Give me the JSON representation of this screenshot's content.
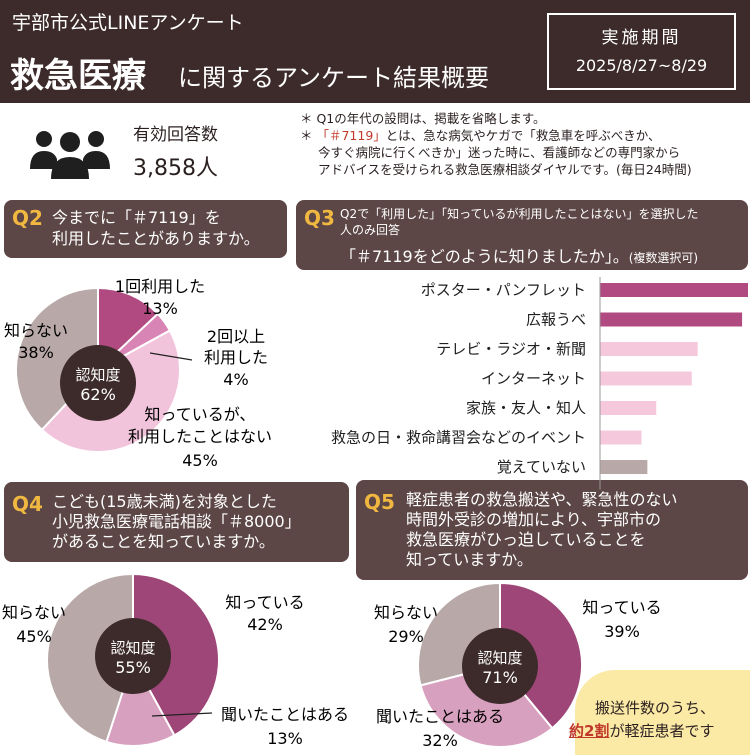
{
  "header": {
    "subtitle": "宇部市公式LINEアンケート",
    "title_big": "救急医療",
    "title_rest": "に関するアンケート結果概要",
    "period_label": "実施期間",
    "period_value": "2025/8/27~8/29"
  },
  "respondents": {
    "label": "有効回答数",
    "value": "3,858人",
    "icon": "people-group-icon"
  },
  "notes": {
    "line1": "＊ Q1の年代の設問は、掲載を省略します。",
    "line2_star": "＊ ",
    "line2_red": "「＃7119」",
    "line2_rest": "とは、急な病気やケガで「救急車を呼ぶべきか、",
    "line3": "今すぐ病院に行くべきか」迷った時に、看護師などの専門家から",
    "line4": "アドバイスを受けられる救急医療相談ダイヤルです。(毎日24時間)"
  },
  "q2": {
    "num": "Q2",
    "line1": "今までに「＃7119」を",
    "line2": "利用したことがありますか。",
    "center_title": "認知度",
    "center_value": "62%",
    "labels": [
      {
        "name": "1回利用した",
        "pct": "13%"
      },
      {
        "name_l1": "2回以上",
        "name_l2": "利用した",
        "pct": "4%"
      },
      {
        "name_l1": "知っているが、",
        "name_l2": "利用したことはない",
        "pct": "45%"
      },
      {
        "name": "知らない",
        "pct": "38%"
      }
    ]
  },
  "q3": {
    "num": "Q3",
    "line1": "Q2で「利用した」「知っているが利用したことはない」を選択した",
    "line2": "人のみ回答",
    "line3": "「＃7119をどのように知りましたか」。",
    "line3_small": "(複数選択可)"
  },
  "q4": {
    "num": "Q4",
    "line1": "こども(15歳未満)を対象とした",
    "line2": "小児救急医療電話相談「＃8000」",
    "line3": "があることを知っていますか。",
    "center_title": "認知度",
    "center_value": "55%",
    "labels": [
      {
        "name": "知っている",
        "pct": "42%"
      },
      {
        "name": "聞いたことはある",
        "pct": "13%"
      },
      {
        "name": "知らない",
        "pct": "45%"
      }
    ]
  },
  "q5": {
    "num": "Q5",
    "line1": "軽症患者の救急搬送や、緊急性のない",
    "line2": "時間外受診の増加により、宇部市の",
    "line3": "救急医療がひっ迫していることを",
    "line4": "知っていますか。",
    "center_title": "認知度",
    "center_value": "71%",
    "labels": [
      {
        "name": "知っている",
        "pct": "39%"
      },
      {
        "name": "聞いたことはある",
        "pct": "32%"
      },
      {
        "name": "知らない",
        "pct": "29%"
      }
    ]
  },
  "callout": {
    "line1": "搬送件数のうち、",
    "line2_red": "約2割",
    "line2_rest": "が軽症患者です"
  },
  "chart_data": [
    {
      "type": "pie",
      "id": "q2",
      "categories": [
        "1回利用した",
        "2回以上利用した",
        "知っているが、利用したことはない",
        "知らない"
      ],
      "values": [
        13,
        4,
        45,
        38
      ],
      "colors": [
        "#b04a80",
        "#d884b4",
        "#f2c4dc",
        "#b8a8a8"
      ]
    },
    {
      "type": "bar",
      "id": "q3",
      "orientation": "horizontal",
      "categories": [
        "ポスター・パンフレット",
        "広報うべ",
        "テレビ・ラジオ・新聞",
        "インターネット",
        "家族・友人・知人",
        "救急の日・救命講習会などのイベント",
        "覚えていない"
      ],
      "values": [
        100,
        96,
        66,
        62,
        38,
        28,
        32
      ],
      "colors": [
        "#b04a80",
        "#b04a80",
        "#f5c8dc",
        "#f5c8dc",
        "#f5c8dc",
        "#f5c8dc",
        "#b8a8a8"
      ]
    },
    {
      "type": "pie",
      "id": "q4",
      "categories": [
        "知っている",
        "聞いたことはある",
        "知らない"
      ],
      "values": [
        42,
        13,
        45
      ],
      "colors": [
        "#9e4677",
        "#d8a0bf",
        "#b8a8a8"
      ]
    },
    {
      "type": "pie",
      "id": "q5",
      "categories": [
        "知っている",
        "聞いたことはある",
        "知らない"
      ],
      "values": [
        39,
        32,
        29
      ],
      "colors": [
        "#9e4677",
        "#d8a0bf",
        "#b8a8a8"
      ]
    }
  ]
}
